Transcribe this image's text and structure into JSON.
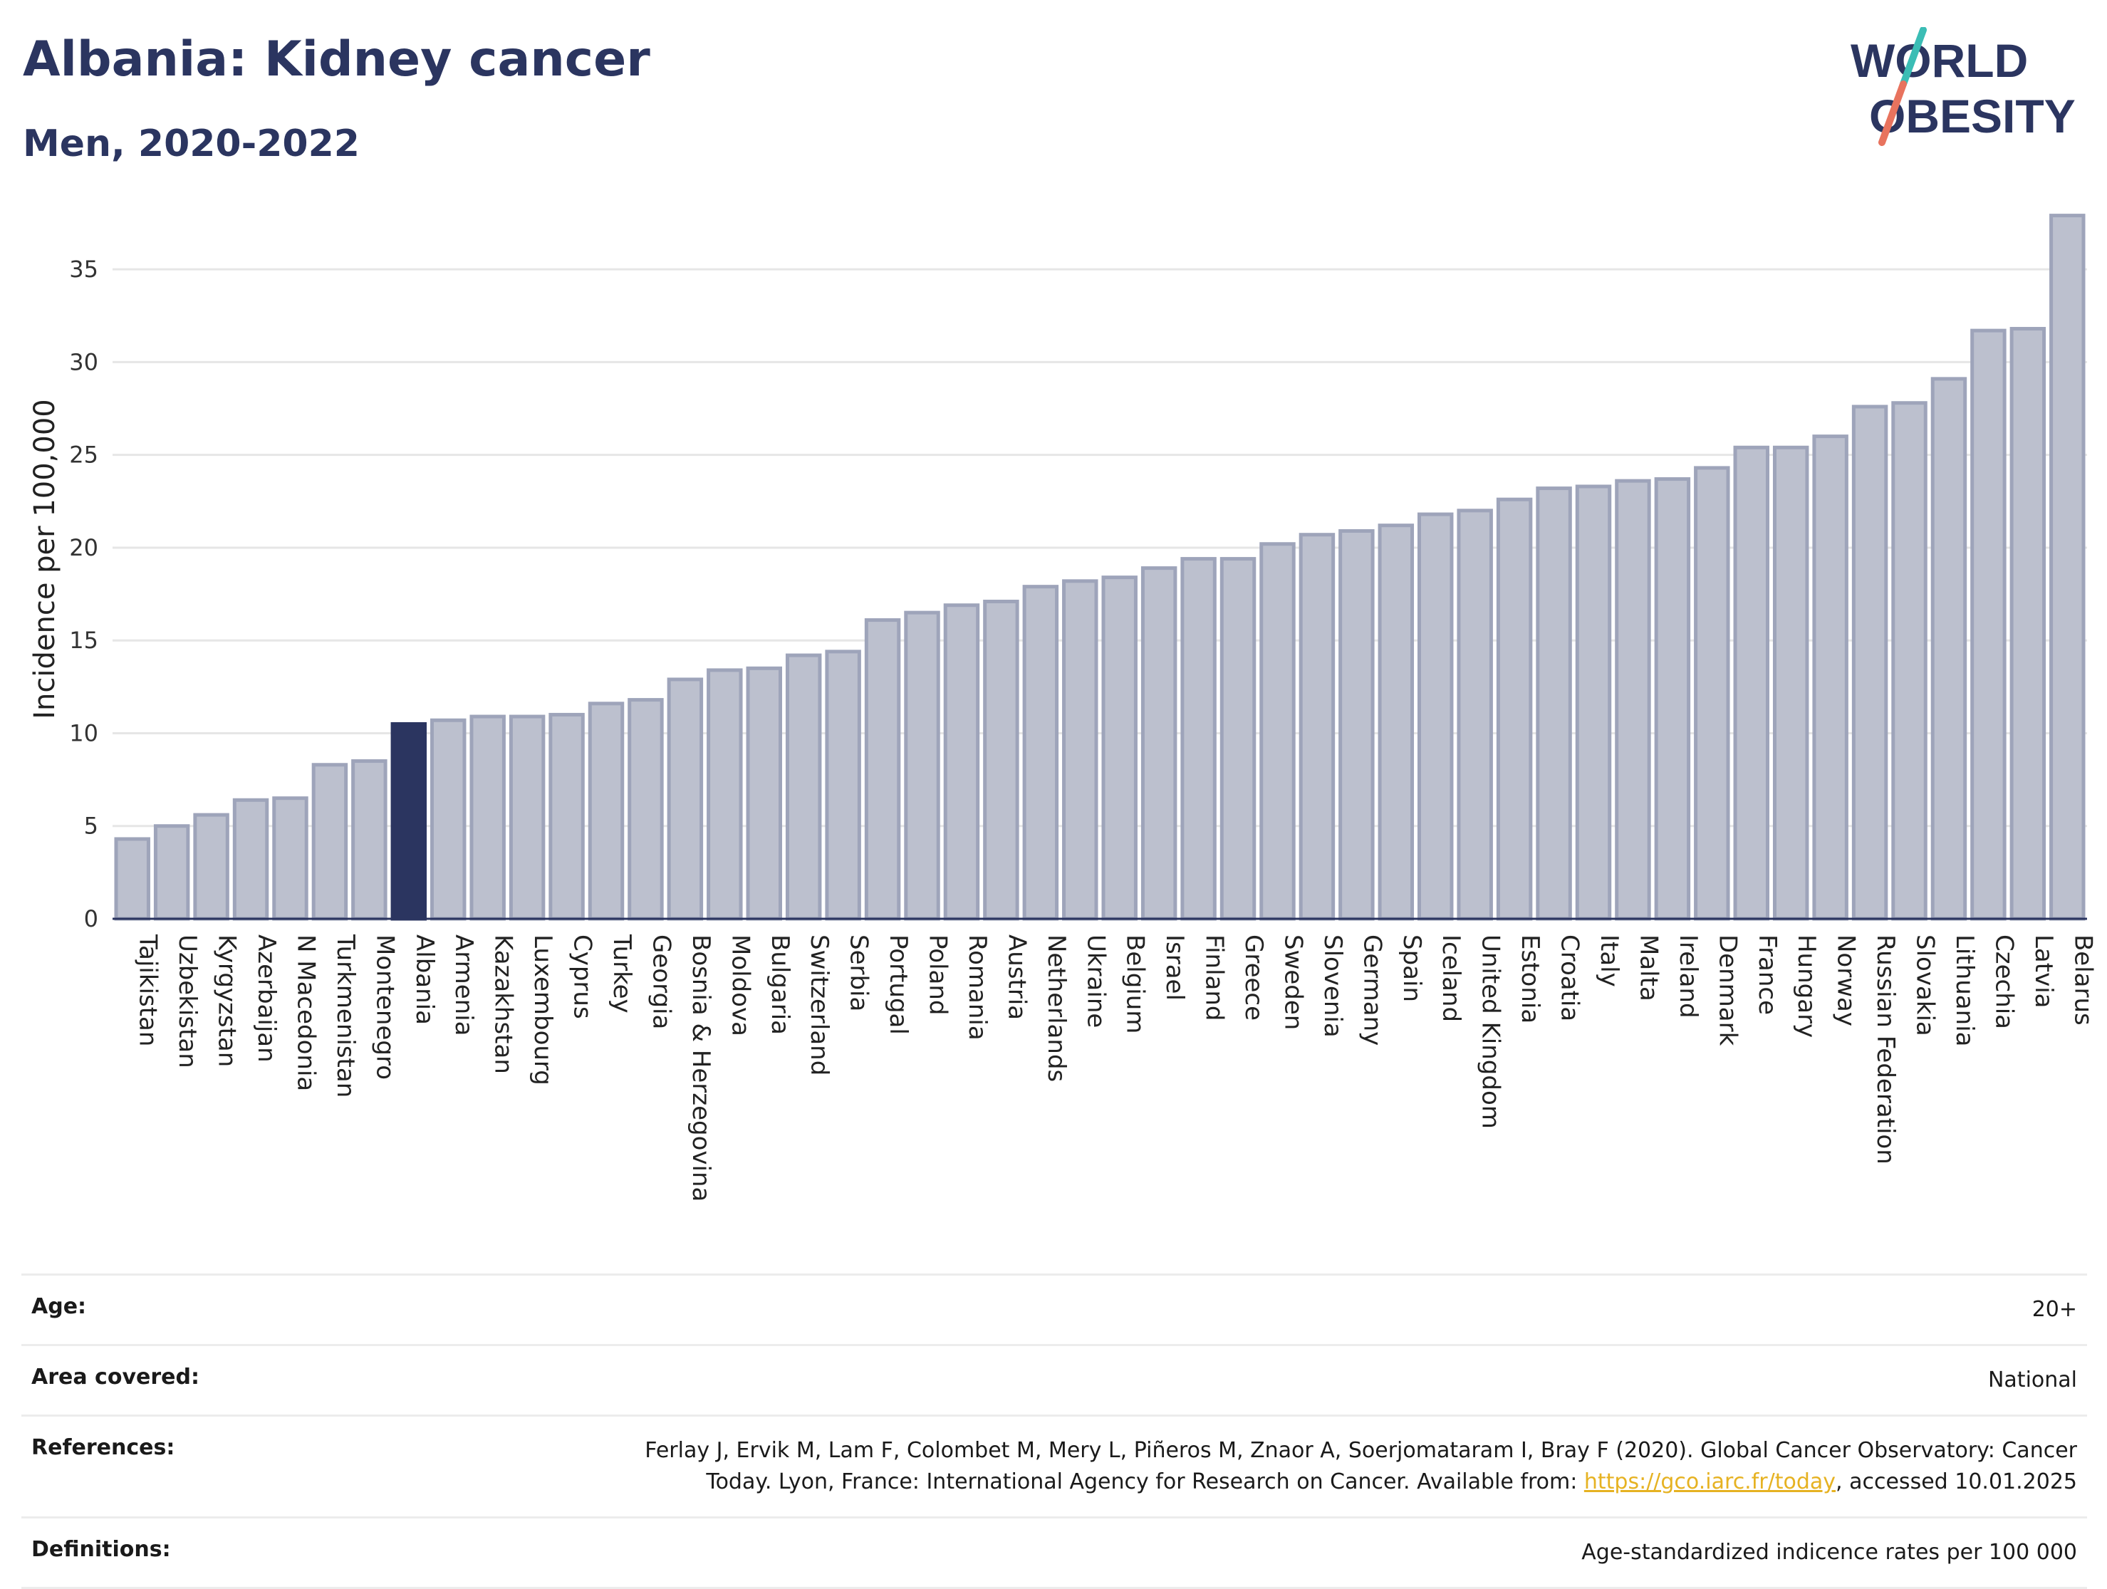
{
  "header": {
    "title": "Albania: Kidney cancer",
    "subtitle": "Men, 2020-2022",
    "logo_line1": "WORLD",
    "logo_line2": "OBESITY"
  },
  "chart_data": {
    "type": "bar",
    "ylabel": "Incidence per 100,000",
    "ylim": [
      0,
      38
    ],
    "yticks": [
      0,
      5,
      10,
      15,
      20,
      25,
      30,
      35
    ],
    "highlight": "Albania",
    "colors": {
      "bar": "#bcc0ce",
      "bar_edge": "#9ea4ba",
      "highlight": "#2b3560",
      "grid": "#e6e6e6"
    },
    "categories": [
      "Tajikistan",
      "Uzbekistan",
      "Kyrgyzstan",
      "Azerbaijan",
      "N Macedonia",
      "Turkmenistan",
      "Montenegro",
      "Albania",
      "Armenia",
      "Kazakhstan",
      "Luxembourg",
      "Cyprus",
      "Turkey",
      "Georgia",
      "Bosnia & Herzegovina",
      "Moldova",
      "Bulgaria",
      "Switzerland",
      "Serbia",
      "Portugal",
      "Poland",
      "Romania",
      "Austria",
      "Netherlands",
      "Ukraine",
      "Belgium",
      "Israel",
      "Finland",
      "Greece",
      "Sweden",
      "Slovenia",
      "Germany",
      "Spain",
      "Iceland",
      "United Kingdom",
      "Estonia",
      "Croatia",
      "Italy",
      "Malta",
      "Ireland",
      "Denmark",
      "France",
      "Hungary",
      "Norway",
      "Russian Federation",
      "Slovakia",
      "Lithuania",
      "Czechia",
      "Latvia",
      "Belarus"
    ],
    "values": [
      4.3,
      5.0,
      5.6,
      6.4,
      6.5,
      8.3,
      8.5,
      10.5,
      10.7,
      10.9,
      10.9,
      11.0,
      11.6,
      11.8,
      12.9,
      13.4,
      13.5,
      14.2,
      14.4,
      16.1,
      16.5,
      16.9,
      17.1,
      17.9,
      18.2,
      18.4,
      18.9,
      19.4,
      19.4,
      20.2,
      20.7,
      20.9,
      21.2,
      21.8,
      22.0,
      22.6,
      23.2,
      23.3,
      23.6,
      23.7,
      24.3,
      25.4,
      25.4,
      26.0,
      27.6,
      27.8,
      29.1,
      31.7,
      31.8,
      37.9
    ]
  },
  "info": {
    "age_label": "Age:",
    "age_value": "20+",
    "area_label": "Area covered:",
    "area_value": "National",
    "refs_label": "References:",
    "refs_text": "Ferlay J, Ervik M, Lam F, Colombet M, Mery L, Piñeros M, Znaor A, Soerjomataram I, Bray F (2020). Global Cancer Observatory: Cancer Today. Lyon, France: International Agency for Research on Cancer. Available from: ",
    "refs_link": "https://gco.iarc.fr/today",
    "refs_tail": ", accessed 10.01.2025",
    "defs_label": "Definitions:",
    "defs_value": "Age-standardized indicence rates per 100 000"
  }
}
